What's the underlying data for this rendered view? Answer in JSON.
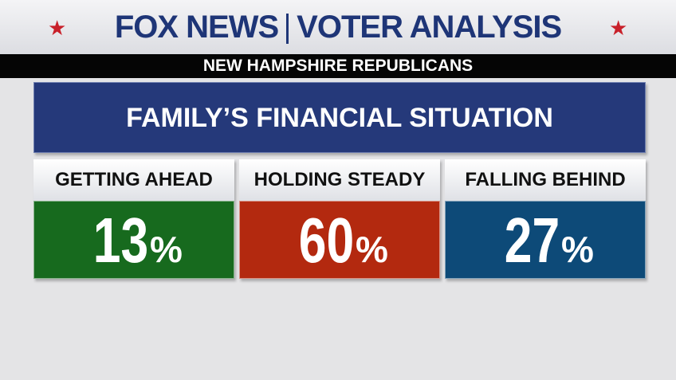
{
  "header": {
    "brand": "FOX NEWS",
    "title": "VOTER ANALYSIS",
    "subtitle": "NEW HAMPSHIRE REPUBLICANS"
  },
  "question": "FAMILY’S FINANCIAL SITUATION",
  "cards": [
    {
      "label": "GETTING AHEAD",
      "value": 13,
      "unit": "%",
      "color": "#176a1e"
    },
    {
      "label": "HOLDING STEADY",
      "value": 60,
      "unit": "%",
      "color": "#b3290f"
    },
    {
      "label": "FALLING BEHIND",
      "value": 27,
      "unit": "%",
      "color": "#0d4a78"
    }
  ]
}
